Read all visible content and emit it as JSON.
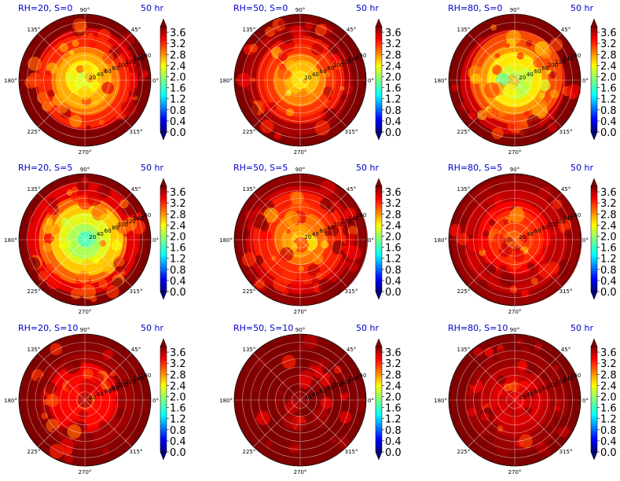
{
  "chart_data": {
    "type": "heatmap",
    "projection": "polar",
    "colormap": "jet",
    "angle_tick_labels": [
      "0°",
      "45°",
      "90°",
      "135°",
      "180°",
      "225°",
      "270°",
      "315°"
    ],
    "colorbar_ticks": [
      "0.0",
      "0.4",
      "0.8",
      "1.2",
      "1.6",
      "2.0",
      "2.4",
      "2.8",
      "3.2",
      "3.6"
    ],
    "colorbar_range": [
      0.0,
      3.8
    ],
    "panels": [
      {
        "title": "RH=20, S=0",
        "time": "50 hr",
        "radial_ticks": [
          "20",
          "40",
          "60",
          "80",
          "100",
          "120",
          "140",
          "160"
        ],
        "center_level": 2.3,
        "outer_level": 3.8
      },
      {
        "title": "RH=50, S=0",
        "time": "50 hr",
        "radial_ticks": [
          "20",
          "40",
          "60",
          "80",
          "100",
          "120",
          "140",
          "160"
        ],
        "center_level": 2.5,
        "outer_level": 3.8
      },
      {
        "title": "RH=80, S=0",
        "time": "50 hr",
        "radial_ticks": [
          "20",
          "40",
          "60",
          "80",
          "100",
          "120",
          "140",
          "160"
        ],
        "center_level": 2.0,
        "outer_level": 3.8
      },
      {
        "title": "RH=20, S=5",
        "time": "50 hr",
        "radial_ticks": [
          "20",
          "40",
          "60",
          "80",
          "100",
          "120",
          "140",
          "160"
        ],
        "center_level": 1.8,
        "outer_level": 3.8
      },
      {
        "title": "RH=50, S=5",
        "time": "50 hr",
        "radial_ticks": [
          "20",
          "40",
          "60",
          "80",
          "100",
          "120",
          "140",
          "160"
        ],
        "center_level": 2.6,
        "outer_level": 3.8
      },
      {
        "title": "RH=80, S=5",
        "time": "50 hr",
        "radial_ticks": [
          "20",
          "40",
          "60",
          "80",
          "100",
          "120",
          "140",
          "160"
        ],
        "center_level": 3.0,
        "outer_level": 3.8
      },
      {
        "title": "RH=20, S=10",
        "time": "50 hr",
        "radial_ticks": [
          "20",
          "40",
          "60",
          "80",
          "100",
          "120",
          "140",
          "160"
        ],
        "center_level": 3.2,
        "outer_level": 3.8
      },
      {
        "title": "RH=50, S=10",
        "time": "50 hr",
        "radial_ticks": [
          "20",
          "40",
          "60",
          "80",
          "100",
          "120",
          "140",
          "160"
        ],
        "center_level": 3.8,
        "outer_level": 3.8
      },
      {
        "title": "RH=80, S=10",
        "time": "50 hr",
        "radial_ticks": [
          "20",
          "40",
          "60",
          "80",
          "100",
          "120",
          "140",
          "160"
        ],
        "center_level": 3.4,
        "outer_level": 3.8
      }
    ]
  }
}
